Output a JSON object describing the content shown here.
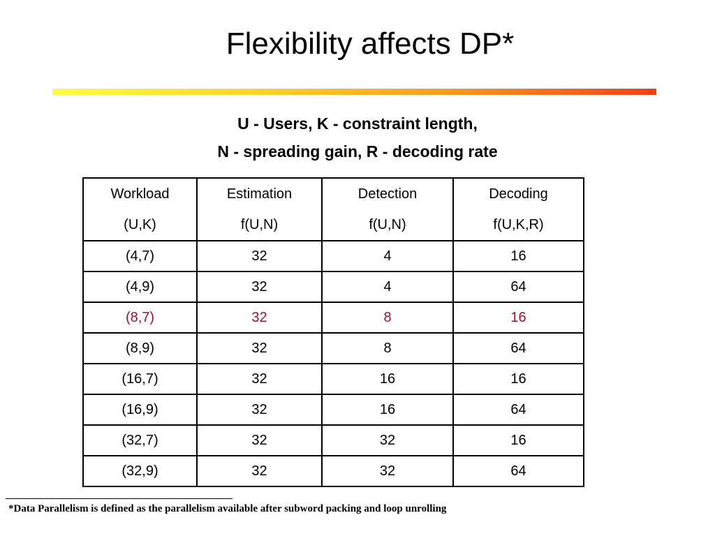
{
  "slide": {
    "title": "Flexibility affects DP*",
    "subtitle_line1": "U - Users, K - constraint length,",
    "subtitle_line2": "N - spreading gain, R - decoding rate",
    "footnote": "*Data Parallelism is defined as the parallelism available after subword packing and loop unrolling",
    "highlight_color": "#a0102a",
    "rule_gradient": [
      "#ffff33",
      "#ffd21a",
      "#ff9a14",
      "#ff3a10"
    ]
  },
  "table": {
    "headers": [
      {
        "line1": "Workload",
        "line2": "(U,K)"
      },
      {
        "line1": "Estimation",
        "line2": "f(U,N)"
      },
      {
        "line1": "Detection",
        "line2": "f(U,N)"
      },
      {
        "line1": "Decoding",
        "line2": "f(U,K,R)"
      }
    ],
    "rows": [
      [
        "(4,7)",
        "32",
        "4",
        "16"
      ],
      [
        "(4,9)",
        "32",
        "4",
        "64"
      ],
      [
        "(8,7)",
        "32",
        "8",
        "16"
      ],
      [
        "(8,9)",
        "32",
        "8",
        "64"
      ],
      [
        "(16,7)",
        "32",
        "16",
        "16"
      ],
      [
        "(16,9)",
        "32",
        "16",
        "64"
      ],
      [
        "(32,7)",
        "32",
        "32",
        "16"
      ],
      [
        "(32,9)",
        "32",
        "32",
        "64"
      ]
    ],
    "highlighted_row_index": 2
  }
}
